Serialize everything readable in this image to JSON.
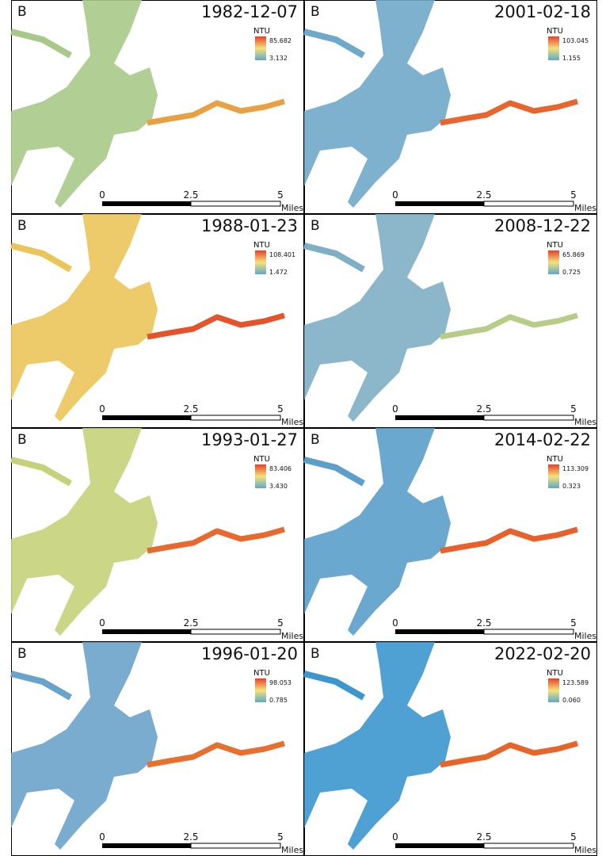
{
  "panels": [
    {
      "label": "B",
      "date": "1982-12-07",
      "legend": {
        "title": "NTU",
        "max": "85.682",
        "min": "3.132"
      },
      "scale": {
        "ticks": [
          "0",
          "2.5",
          "5"
        ],
        "unit": "Miles"
      },
      "water_color": "#a9c98a",
      "channel_color": "#e9a040"
    },
    {
      "label": "B",
      "date": "2001-02-18",
      "legend": {
        "title": "NTU",
        "max": "103.045",
        "min": "1.155"
      },
      "scale": {
        "ticks": [
          "0",
          "2.5",
          "5"
        ],
        "unit": "Miles"
      },
      "water_color": "#6fa9c9",
      "channel_color": "#e8652e"
    },
    {
      "label": "B",
      "date": "1988-01-23",
      "legend": {
        "title": "NTU",
        "max": "108.401",
        "min": "1.472"
      },
      "scale": {
        "ticks": [
          "0",
          "2.5",
          "5"
        ],
        "unit": "Miles"
      },
      "water_color": "#ecc55a",
      "channel_color": "#e5532a"
    },
    {
      "label": "B",
      "date": "2008-12-22",
      "legend": {
        "title": "NTU",
        "max": "65.869",
        "min": "0.725"
      },
      "scale": {
        "ticks": [
          "0",
          "2.5",
          "5"
        ],
        "unit": "Miles"
      },
      "water_color": "#7fafc4",
      "channel_color": "#b7cc86"
    },
    {
      "label": "B",
      "date": "1993-01-27",
      "legend": {
        "title": "NTU",
        "max": "83.406",
        "min": "3.430"
      },
      "scale": {
        "ticks": [
          "0",
          "2.5",
          "5"
        ],
        "unit": "Miles"
      },
      "water_color": "#c5d27a",
      "channel_color": "#e8692e"
    },
    {
      "label": "B",
      "date": "2014-02-22",
      "legend": {
        "title": "NTU",
        "max": "113.309",
        "min": "0.323"
      },
      "scale": {
        "ticks": [
          "0",
          "2.5",
          "5"
        ],
        "unit": "Miles"
      },
      "water_color": "#5b9fca",
      "channel_color": "#e8602a"
    },
    {
      "label": "B",
      "date": "1996-01-20",
      "legend": {
        "title": "NTU",
        "max": "98.053",
        "min": "0.785"
      },
      "scale": {
        "ticks": [
          "0",
          "2.5",
          "5"
        ],
        "unit": "Miles"
      },
      "water_color": "#6aa3c9",
      "channel_color": "#e8702e"
    },
    {
      "label": "B",
      "date": "2022-02-20",
      "legend": {
        "title": "NTU",
        "max": "123.589",
        "min": "0.060"
      },
      "scale": {
        "ticks": [
          "0",
          "2.5",
          "5"
        ],
        "unit": "Miles"
      },
      "water_color": "#3c97cf",
      "channel_color": "#e8652a"
    }
  ]
}
